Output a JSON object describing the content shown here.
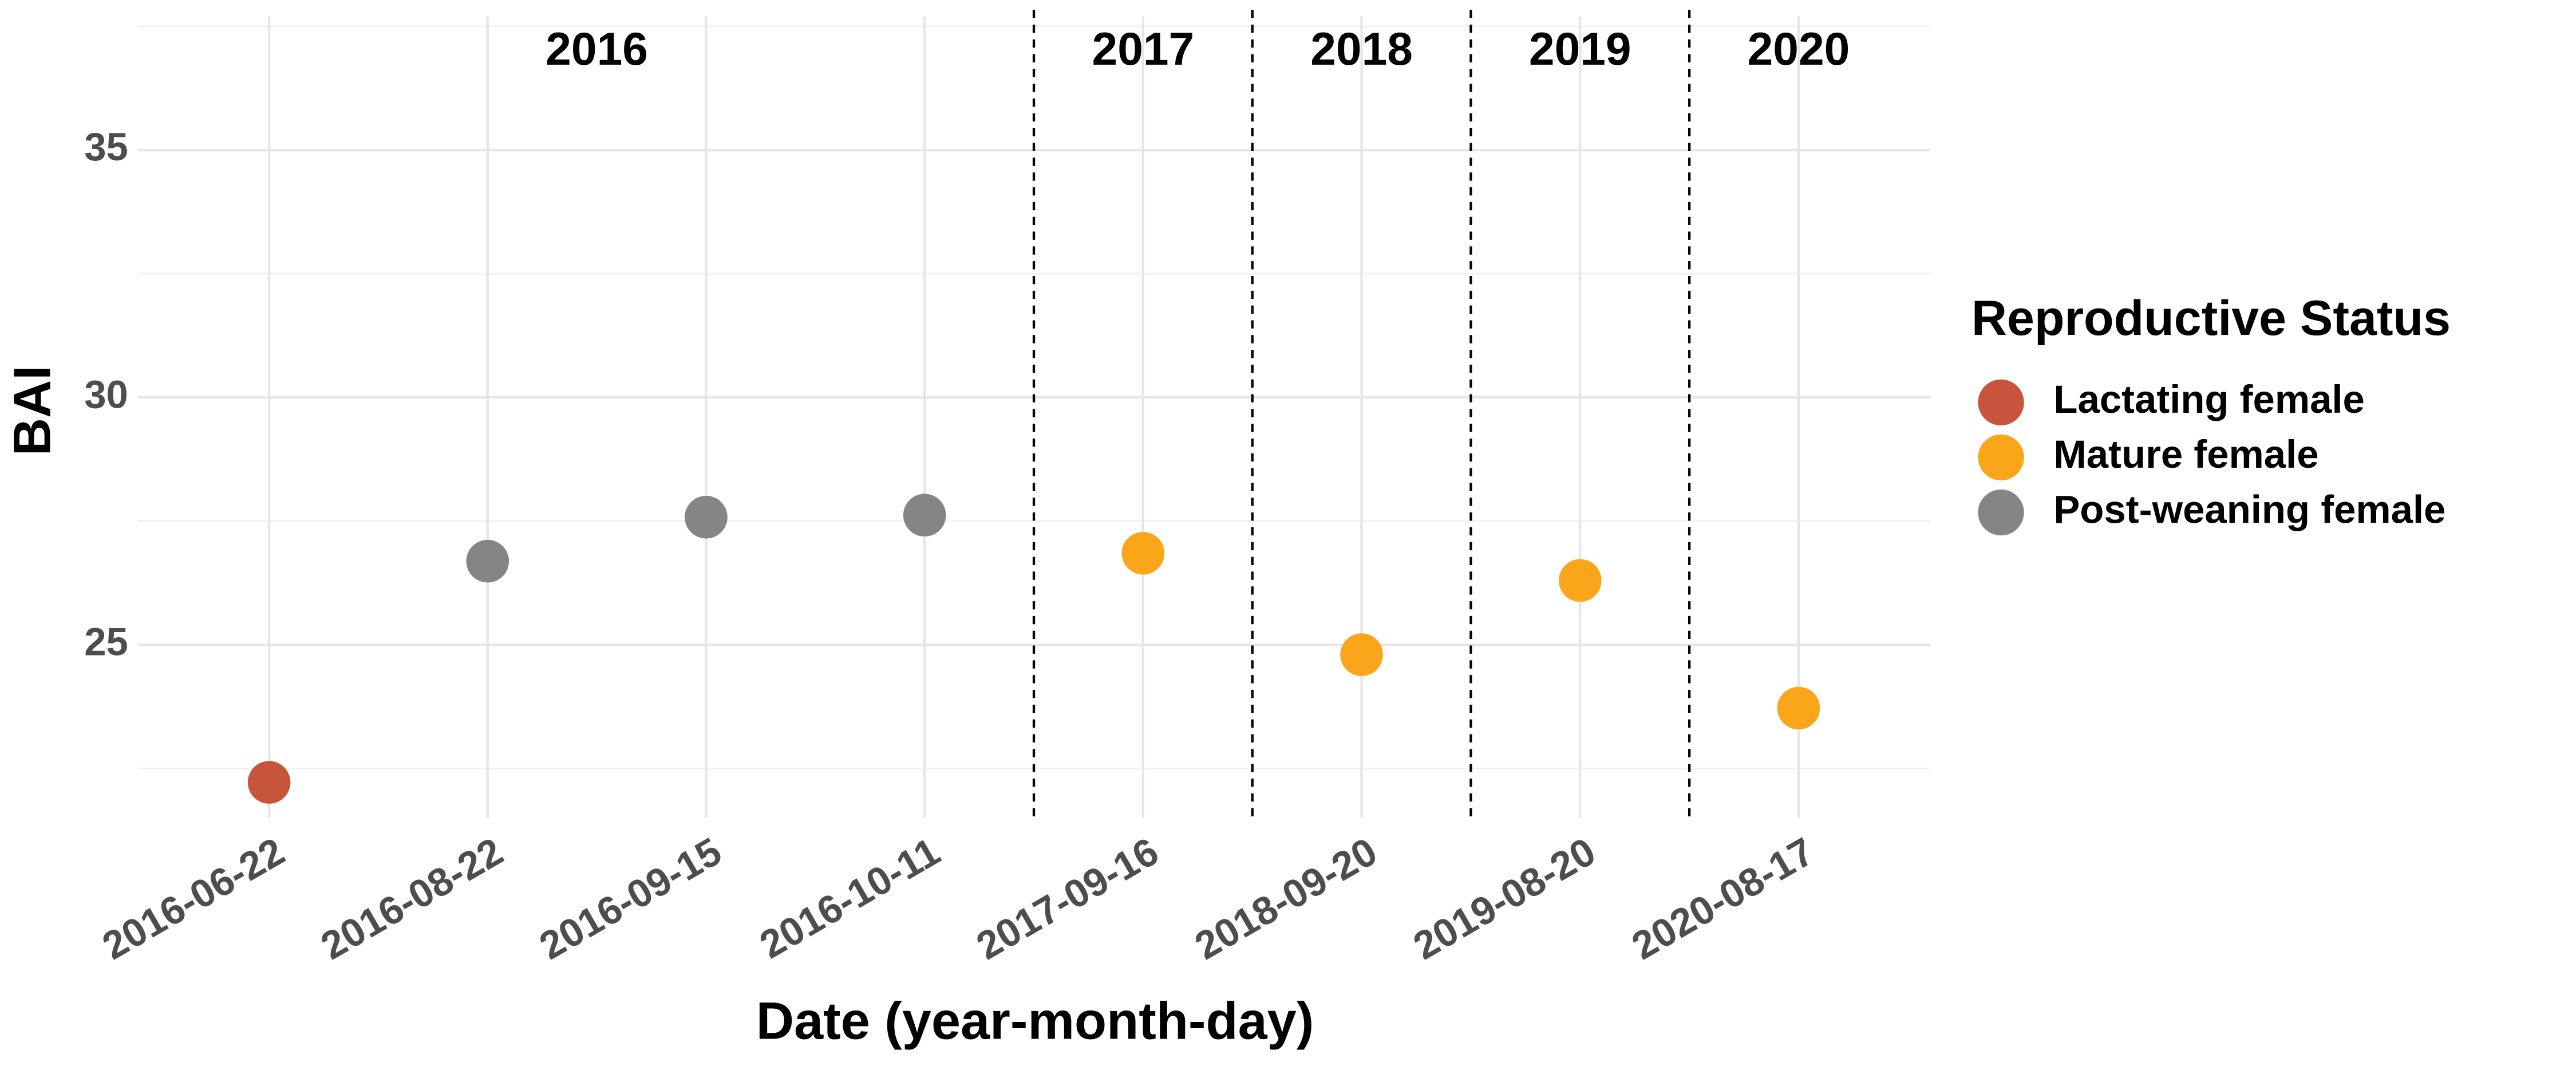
{
  "chart_data": {
    "type": "scatter",
    "x_label": "Date (year-month-day)",
    "y_label": "BAI",
    "categories": [
      "2016-06-22",
      "2016-08-22",
      "2016-09-15",
      "2016-10-11",
      "2017-09-16",
      "2018-09-20",
      "2019-08-20",
      "2020-08-17"
    ],
    "series": [
      {
        "name": "Lactating female",
        "color": "#c7553b",
        "values": [
          22.22,
          null,
          null,
          null,
          null,
          null,
          null,
          null
        ]
      },
      {
        "name": "Mature female",
        "color": "#f9a61b",
        "values": [
          null,
          null,
          null,
          null,
          26.85,
          24.8,
          26.3,
          23.72
        ]
      },
      {
        "name": "Post-weaning female",
        "color": "#858585",
        "values": [
          null,
          26.69,
          27.58,
          27.62,
          null,
          null,
          null,
          null
        ]
      }
    ],
    "legend_title": "Reproductive Status",
    "legend_position": "right",
    "year_groups": [
      "2016",
      "2017",
      "2018",
      "2019",
      "2020"
    ],
    "ylim": [
      21.5,
      37.7
    ],
    "yticks": [
      25,
      30,
      35
    ],
    "minor_yticks": [
      22.5,
      27.5,
      32.5,
      37.5
    ],
    "grid": true
  }
}
